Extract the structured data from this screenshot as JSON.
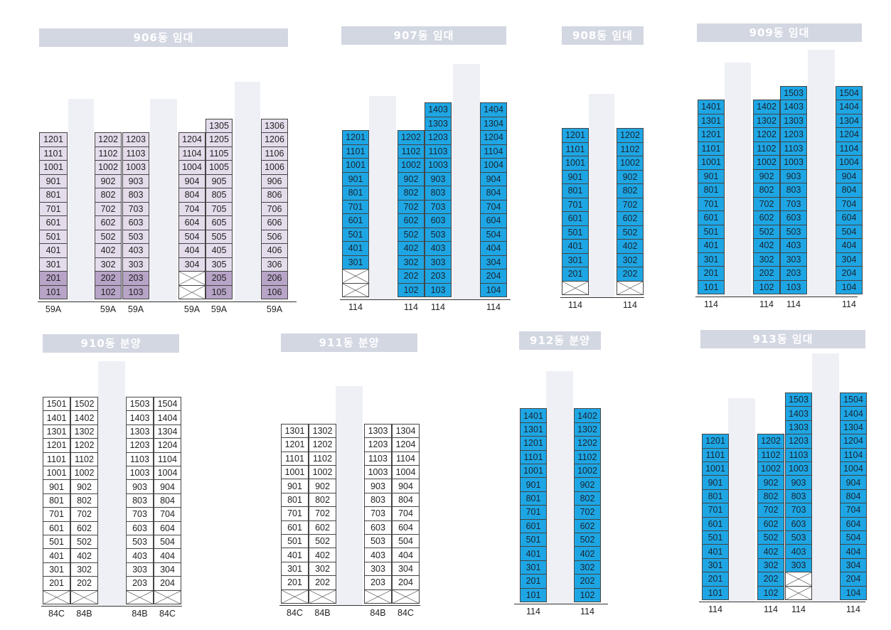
{
  "buildings": [
    {
      "title": "906동 임대",
      "cell_color": "#e5dceb",
      "cell_color_low": "#b7a4c7",
      "lines": [
        {
          "units": [
            "101",
            "201",
            "301",
            "401",
            "501",
            "601",
            "701",
            "801",
            "901",
            "1001",
            "1101",
            "1201"
          ],
          "type": "59A"
        },
        {
          "units": [
            "102",
            "202",
            "302",
            "402",
            "502",
            "602",
            "702",
            "802",
            "902",
            "1002",
            "1102",
            "1202"
          ],
          "type": "59A"
        },
        {
          "units": [
            "103",
            "203",
            "303",
            "403",
            "503",
            "603",
            "703",
            "803",
            "903",
            "1003",
            "1103",
            "1203"
          ],
          "type": "59A"
        },
        {
          "units": [
            "",
            "",
            "304",
            "404",
            "504",
            "604",
            "704",
            "804",
            "904",
            "1004",
            "1104",
            "1204"
          ],
          "type": "59A"
        },
        {
          "units": [
            "105",
            "205",
            "305",
            "405",
            "505",
            "605",
            "705",
            "805",
            "905",
            "1005",
            "1105",
            "1205",
            "1305"
          ],
          "type": "59A"
        },
        {
          "units": [
            "106",
            "206",
            "306",
            "406",
            "506",
            "606",
            "706",
            "806",
            "906",
            "1006",
            "1106",
            "1206",
            "1306"
          ],
          "type": "59A"
        }
      ]
    },
    {
      "title": "907동 임대",
      "cell_color": "#1ea6e4",
      "lines": [
        {
          "units": [
            "",
            "",
            "301",
            "401",
            "501",
            "601",
            "701",
            "801",
            "901",
            "1001",
            "1101",
            "1201"
          ],
          "type": "114"
        },
        {
          "units": [
            "102",
            "202",
            "302",
            "402",
            "502",
            "602",
            "702",
            "802",
            "902",
            "1002",
            "1102",
            "1202"
          ],
          "type": "114"
        },
        {
          "units": [
            "103",
            "203",
            "303",
            "403",
            "503",
            "603",
            "703",
            "803",
            "903",
            "1003",
            "1103",
            "1203",
            "1303",
            "1403"
          ],
          "type": "114"
        },
        {
          "units": [
            "104",
            "204",
            "304",
            "404",
            "504",
            "604",
            "704",
            "804",
            "904",
            "1004",
            "1104",
            "1204",
            "1304",
            "1404"
          ],
          "type": "114"
        }
      ]
    },
    {
      "title": "908동 임대",
      "cell_color": "#1ea6e4",
      "lines": [
        {
          "units": [
            "",
            "201",
            "301",
            "401",
            "501",
            "601",
            "701",
            "801",
            "901",
            "1001",
            "1101",
            "1201"
          ],
          "type": "114"
        },
        {
          "units": [
            "",
            "202",
            "302",
            "402",
            "502",
            "602",
            "702",
            "802",
            "902",
            "1002",
            "1102",
            "1202"
          ],
          "type": "114"
        }
      ]
    },
    {
      "title": "909동 임대",
      "cell_color": "#1ea6e4",
      "lines": [
        {
          "units": [
            "101",
            "201",
            "301",
            "401",
            "501",
            "601",
            "701",
            "801",
            "901",
            "1001",
            "1101",
            "1201",
            "1301",
            "1401"
          ],
          "type": "114"
        },
        {
          "units": [
            "102",
            "202",
            "302",
            "402",
            "502",
            "602",
            "702",
            "802",
            "902",
            "1002",
            "1102",
            "1202",
            "1302",
            "1402"
          ],
          "type": "114"
        },
        {
          "units": [
            "103",
            "203",
            "303",
            "403",
            "503",
            "603",
            "703",
            "803",
            "903",
            "1003",
            "1103",
            "1203",
            "1303",
            "1403",
            "1503"
          ],
          "type": "114"
        },
        {
          "units": [
            "104",
            "204",
            "304",
            "404",
            "504",
            "604",
            "704",
            "804",
            "904",
            "1004",
            "1104",
            "1204",
            "1304",
            "1404",
            "1504"
          ],
          "type": "114"
        }
      ]
    },
    {
      "title": "910동 분양",
      "cell_color": "#ffffff",
      "lines": [
        {
          "units": [
            "",
            "201",
            "301",
            "401",
            "501",
            "601",
            "701",
            "801",
            "901",
            "1001",
            "1101",
            "1201",
            "1301",
            "1401",
            "1501"
          ],
          "type": "84C"
        },
        {
          "units": [
            "",
            "202",
            "302",
            "402",
            "502",
            "602",
            "702",
            "802",
            "902",
            "1002",
            "1102",
            "1202",
            "1302",
            "1402",
            "1502"
          ],
          "type": "84B"
        },
        {
          "units": [
            "",
            "203",
            "303",
            "403",
            "503",
            "603",
            "703",
            "803",
            "903",
            "1003",
            "1103",
            "1203",
            "1303",
            "1403",
            "1503"
          ],
          "type": "84B"
        },
        {
          "units": [
            "",
            "204",
            "304",
            "404",
            "504",
            "604",
            "704",
            "804",
            "904",
            "1004",
            "1104",
            "1204",
            "1304",
            "1404",
            "1504"
          ],
          "type": "84C"
        }
      ]
    },
    {
      "title": "911동 분양",
      "cell_color": "#ffffff",
      "lines": [
        {
          "units": [
            "",
            "201",
            "301",
            "401",
            "501",
            "601",
            "701",
            "801",
            "901",
            "1001",
            "1101",
            "1201",
            "1301"
          ],
          "type": "84C"
        },
        {
          "units": [
            "",
            "202",
            "302",
            "402",
            "502",
            "602",
            "702",
            "802",
            "902",
            "1002",
            "1102",
            "1202",
            "1302"
          ],
          "type": "84B"
        },
        {
          "units": [
            "",
            "203",
            "303",
            "403",
            "503",
            "603",
            "703",
            "803",
            "903",
            "1003",
            "1103",
            "1203",
            "1303"
          ],
          "type": "84B"
        },
        {
          "units": [
            "",
            "204",
            "304",
            "404",
            "504",
            "604",
            "704",
            "804",
            "904",
            "1004",
            "1104",
            "1204",
            "1304"
          ],
          "type": "84C"
        }
      ]
    },
    {
      "title": "912동 분양",
      "cell_color": "#1ea6e4",
      "lines": [
        {
          "units": [
            "101",
            "201",
            "301",
            "401",
            "501",
            "601",
            "701",
            "801",
            "901",
            "1001",
            "1101",
            "1201",
            "1301",
            "1401"
          ],
          "type": "114"
        },
        {
          "units": [
            "102",
            "202",
            "302",
            "402",
            "502",
            "602",
            "702",
            "802",
            "902",
            "1002",
            "1102",
            "1202",
            "1302",
            "1402"
          ],
          "type": "114"
        }
      ]
    },
    {
      "title": "913동 임대",
      "cell_color": "#1ea6e4",
      "lines": [
        {
          "units": [
            "101",
            "201",
            "301",
            "401",
            "501",
            "601",
            "701",
            "801",
            "901",
            "1001",
            "1101",
            "1201"
          ],
          "type": "114"
        },
        {
          "units": [
            "102",
            "202",
            "302",
            "402",
            "502",
            "602",
            "702",
            "802",
            "902",
            "1002",
            "1102",
            "1202"
          ],
          "type": "114"
        },
        {
          "units": [
            "",
            "",
            "303",
            "403",
            "503",
            "603",
            "703",
            "803",
            "903",
            "1003",
            "1103",
            "1203",
            "1303",
            "1403",
            "1503"
          ],
          "type": "114"
        },
        {
          "units": [
            "104",
            "204",
            "304",
            "404",
            "504",
            "604",
            "704",
            "804",
            "904",
            "1004",
            "1104",
            "1204",
            "1304",
            "1404",
            "1504"
          ],
          "type": "114"
        }
      ]
    }
  ]
}
